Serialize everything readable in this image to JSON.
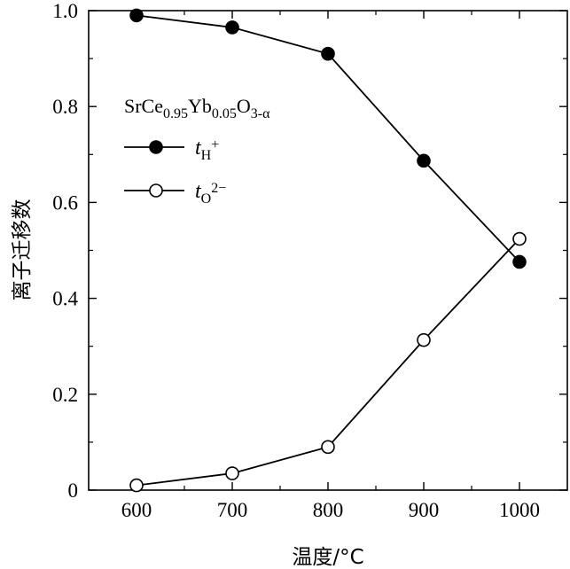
{
  "chart_data": {
    "type": "line",
    "xlabel": "温度/°C",
    "ylabel": "离子迁移数",
    "xlim": [
      550,
      1050
    ],
    "ylim": [
      0,
      1.0
    ],
    "x_ticks": [
      600,
      700,
      800,
      900,
      1000
    ],
    "x_tick_labels": [
      "600",
      "700",
      "800",
      "900",
      "1000"
    ],
    "y_ticks": [
      0,
      0.2,
      0.4,
      0.6,
      0.8,
      1.0
    ],
    "y_tick_labels": [
      "0",
      "0.2",
      "0.4",
      "0.6",
      "0.8",
      "1.0"
    ],
    "grid": false,
    "legend_position": "upper-left",
    "legend_title": {
      "base": "SrCe",
      "sub1": "0.95",
      "mid": "Yb",
      "sub2": "0.05",
      "tail": "O",
      "sub3": "3-α"
    },
    "series": [
      {
        "name": "tH+",
        "label_main": "t",
        "label_sub": "H",
        "label_sup": "+",
        "marker": "filled-circle",
        "x": [
          600,
          700,
          800,
          900,
          1000
        ],
        "y": [
          0.99,
          0.965,
          0.91,
          0.687,
          0.476
        ]
      },
      {
        "name": "tO2−",
        "label_main": "t",
        "label_sub": "O",
        "label_sup": "2−",
        "marker": "open-circle",
        "x": [
          600,
          700,
          800,
          900,
          1000
        ],
        "y": [
          0.01,
          0.035,
          0.09,
          0.313,
          0.524
        ]
      }
    ]
  }
}
